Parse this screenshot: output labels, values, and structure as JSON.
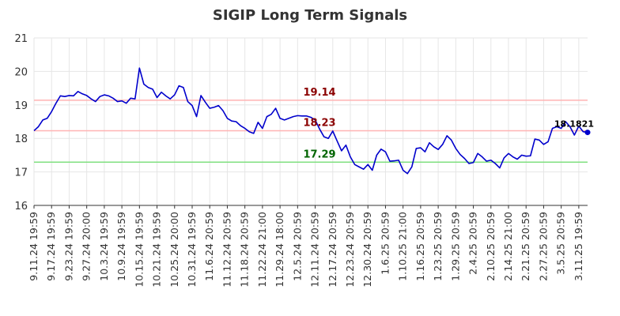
{
  "chart_data": {
    "type": "line",
    "title": "SIGIP Long Term Signals",
    "xlabel": "",
    "ylabel": "",
    "ylim": [
      16,
      21
    ],
    "yticks": [
      16,
      17,
      18,
      19,
      20,
      21
    ],
    "grid": true,
    "line_color": "#0000cc",
    "xtick_labels": [
      "9.11.24 19:59",
      "9.17.24 19:59",
      "9.23.24 19:59",
      "9.27.24 20:00",
      "10.3.24 19:59",
      "10.9.24 19:59",
      "10.15.24 19:59",
      "10.21.24 19:59",
      "10.25.24 20:00",
      "10.31.24 19:59",
      "11.6.24 20:59",
      "11.12.24 20:59",
      "11.18.24 20:59",
      "11.22.24 21:00",
      "11.29.24 18:00",
      "12.5.24 20:59",
      "12.11.24 20:59",
      "12.17.24 20:59",
      "12.23.24 20:59",
      "12.30.24 20:59",
      "1.6.25 20:59",
      "1.10.25 21:00",
      "1.16.25 20:59",
      "1.23.25 20:59",
      "1.29.25 20:59",
      "2.4.25 20:59",
      "2.10.25 20:59",
      "2.14.25 21:00",
      "2.21.25 20:59",
      "2.27.25 20:59",
      "3.5.25 20:59",
      "3.11.25 19:59"
    ],
    "points_per_tick": 4,
    "values": [
      18.23,
      18.35,
      18.55,
      18.6,
      18.8,
      19.05,
      19.27,
      19.25,
      19.28,
      19.27,
      19.4,
      19.33,
      19.28,
      19.18,
      19.1,
      19.25,
      19.3,
      19.27,
      19.2,
      19.1,
      19.12,
      19.05,
      19.2,
      19.18,
      20.1,
      19.62,
      19.52,
      19.47,
      19.22,
      19.38,
      19.27,
      19.18,
      19.3,
      19.57,
      19.52,
      19.1,
      18.98,
      18.65,
      19.28,
      19.08,
      18.9,
      18.93,
      18.98,
      18.83,
      18.6,
      18.52,
      18.5,
      18.38,
      18.3,
      18.2,
      18.15,
      18.48,
      18.3,
      18.65,
      18.72,
      18.9,
      18.6,
      18.55,
      18.6,
      18.65,
      18.68,
      18.67,
      18.67,
      18.63,
      18.55,
      18.28,
      18.05,
      18.0,
      18.22,
      17.92,
      17.63,
      17.8,
      17.45,
      17.22,
      17.15,
      17.08,
      17.22,
      17.05,
      17.5,
      17.68,
      17.6,
      17.32,
      17.33,
      17.35,
      17.05,
      16.95,
      17.15,
      17.7,
      17.72,
      17.6,
      17.87,
      17.75,
      17.67,
      17.82,
      18.08,
      17.95,
      17.7,
      17.52,
      17.4,
      17.25,
      17.28,
      17.55,
      17.45,
      17.32,
      17.35,
      17.25,
      17.12,
      17.42,
      17.55,
      17.45,
      17.38,
      17.5,
      17.47,
      17.48,
      17.98,
      17.95,
      17.82,
      17.9,
      18.3,
      18.35,
      18.3,
      18.5,
      18.35,
      18.1,
      18.37,
      18.2,
      18.18
    ],
    "reference_lines": [
      {
        "value": 19.14,
        "label": "19.14",
        "line_color": "#ffb3b3",
        "label_color": "#8b0000"
      },
      {
        "value": 18.23,
        "label": "18.23",
        "line_color": "#ffb3b3",
        "label_color": "#8b0000"
      },
      {
        "value": 17.29,
        "label": "17.29",
        "line_color": "#80e080",
        "label_color": "#006400"
      }
    ],
    "last_value_label": "18.1821",
    "last_marker_color": "#0000cc"
  }
}
